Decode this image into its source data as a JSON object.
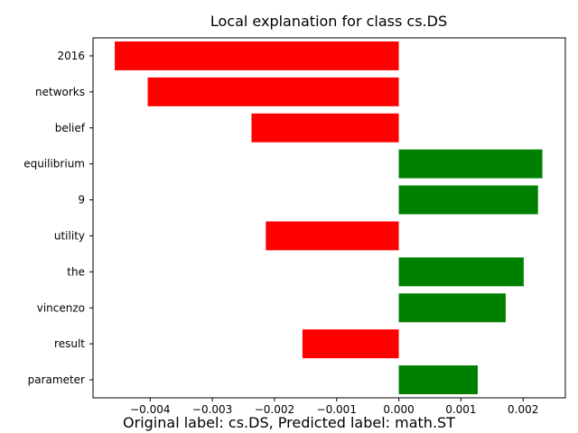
{
  "chart_data": {
    "type": "bar",
    "orientation": "horizontal",
    "title": "Local explanation for class cs.DS",
    "xlabel": "",
    "ylabel": "",
    "categories": [
      "2016",
      "networks",
      "belief",
      "equilibrium",
      "9",
      "utility",
      "the",
      "vincenzo",
      "result",
      "parameter"
    ],
    "values": [
      -0.00457,
      -0.00404,
      -0.00237,
      0.00231,
      0.00224,
      -0.00214,
      0.00201,
      0.00172,
      -0.00155,
      0.00127
    ],
    "xlim": [
      -0.00492,
      0.00268
    ],
    "xticks": [
      -0.004,
      -0.003,
      -0.002,
      -0.001,
      0.0,
      0.001,
      0.002
    ],
    "xtick_labels": [
      "−0.004",
      "−0.003",
      "−0.002",
      "−0.001",
      "0.000",
      "0.001",
      "0.002"
    ],
    "positive_color": "#008000",
    "negative_color": "#ff0000",
    "grid": false,
    "legend": "none"
  },
  "footer": {
    "text": "Original label: cs.DS, Predicted label: math.ST"
  }
}
